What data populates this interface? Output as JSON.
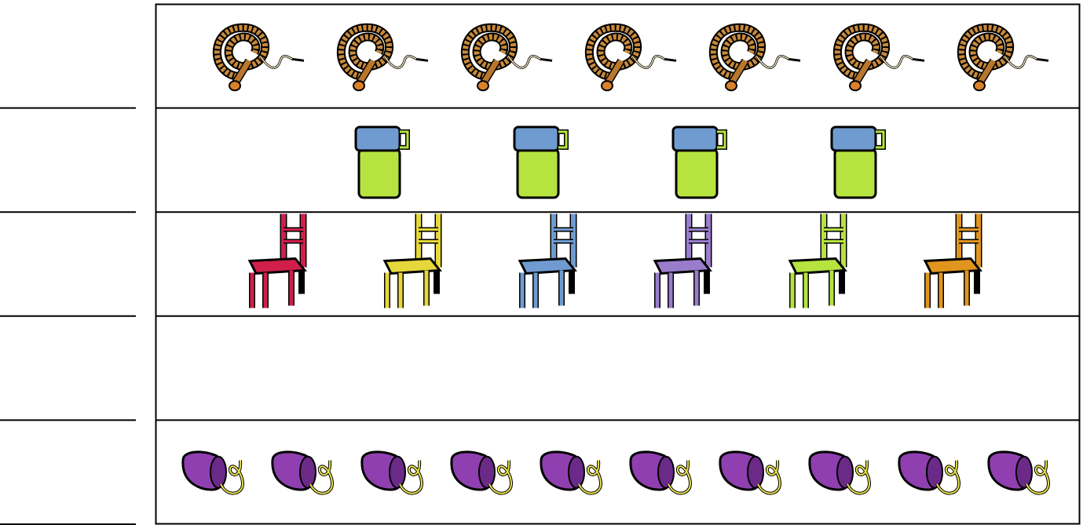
{
  "rows": [
    {
      "count": 7
    },
    {
      "count": 4
    },
    {
      "count": 6
    },
    {
      "count": 0
    },
    {
      "count": 10
    }
  ]
}
